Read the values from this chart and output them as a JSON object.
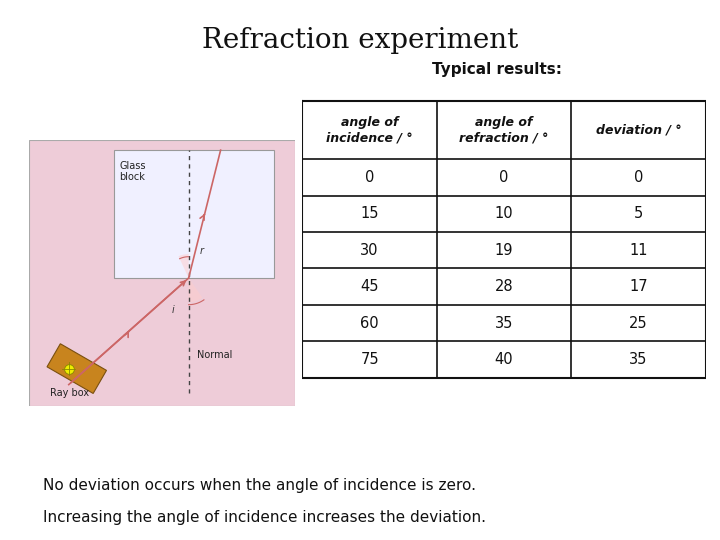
{
  "title": "Refraction experiment",
  "title_fontsize": 20,
  "subtitle": "Typical results:",
  "subtitle_fontsize": 11,
  "col_headers": [
    "angle of\nincidence / °",
    "angle of\nrefraction / °",
    "deviation / °"
  ],
  "table_data": [
    [
      0,
      0,
      0
    ],
    [
      15,
      10,
      5
    ],
    [
      30,
      19,
      11
    ],
    [
      45,
      28,
      17
    ],
    [
      60,
      35,
      25
    ],
    [
      75,
      40,
      35
    ]
  ],
  "footnote1": "No deviation occurs when the angle of incidence is zero.",
  "footnote2": "Increasing the angle of incidence increases the deviation.",
  "footnote_fontsize": 11,
  "background_color": "#ffffff",
  "table_border_color": "#111111",
  "image_bg_color": "#eeccd8",
  "glass_block_color": "#f0f0ff",
  "ray_color": "#cc6666",
  "normal_line_color": "#444444"
}
